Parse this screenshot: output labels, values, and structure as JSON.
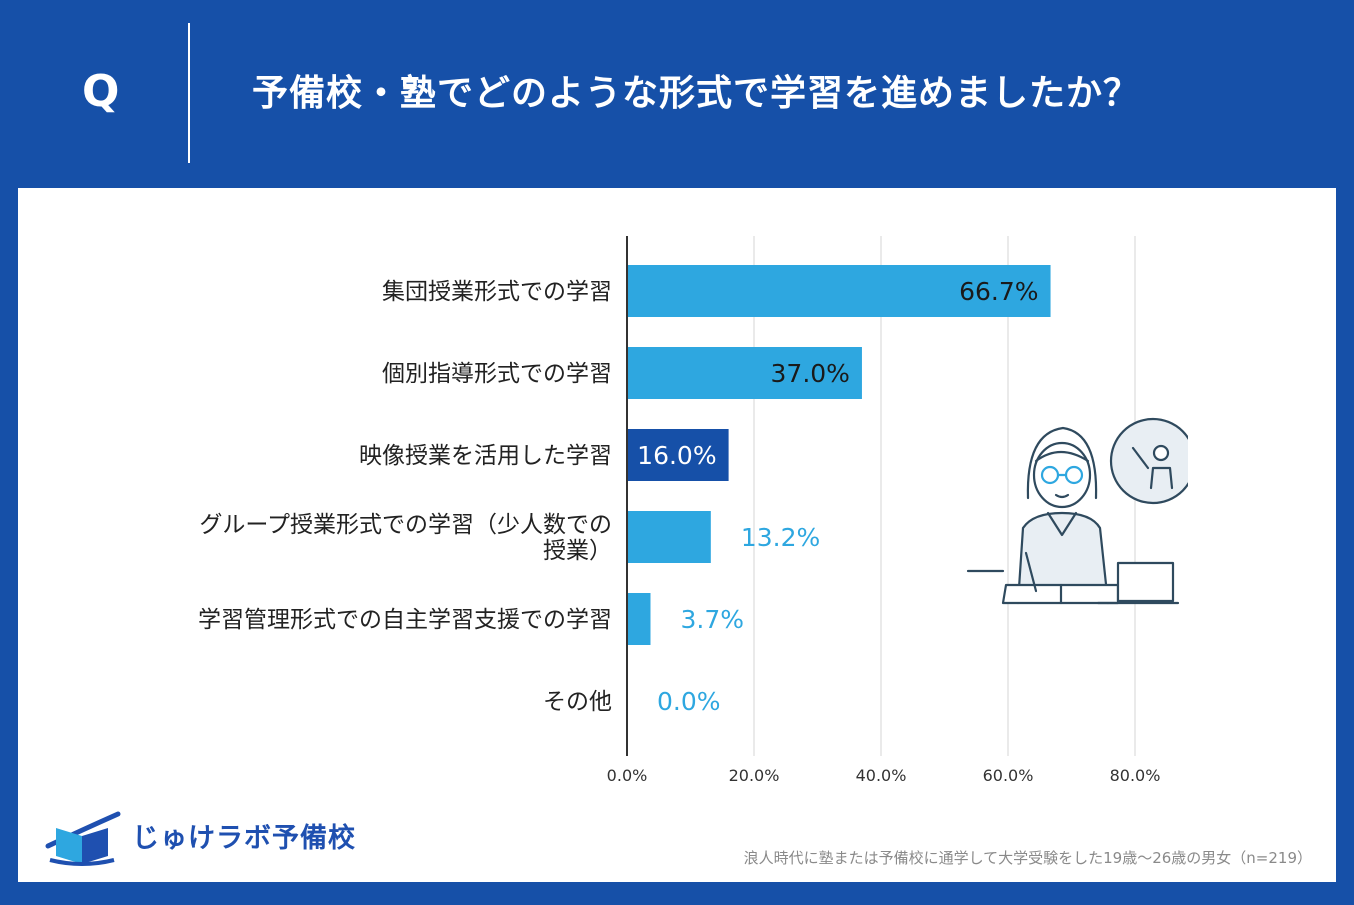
{
  "header": {
    "q_mark": "Q",
    "question": "予備校・塾でどのような形式で学習を進めましたか？"
  },
  "chart_data": {
    "type": "bar",
    "orientation": "horizontal",
    "categories": [
      "集団授業形式での学習",
      "個別指導形式での学習",
      "映像授業を活用した学習",
      "グループ授業形式での学習（少人数での授業）",
      "学習管理形式での自主学習支援での学習",
      "その他"
    ],
    "category_lines": [
      [
        "集団授業形式での学習"
      ],
      [
        "個別指導形式での学習"
      ],
      [
        "映像授業を活用した学習"
      ],
      [
        "グループ授業形式での学習（少人数での",
        "授業）"
      ],
      [
        "学習管理形式での自主学習支援での学習"
      ],
      [
        "その他"
      ]
    ],
    "values": [
      66.7,
      37.0,
      16.0,
      13.2,
      3.7,
      0.0
    ],
    "value_labels": [
      "66.7%",
      "37.0%",
      "16.0%",
      "13.2%",
      "3.7%",
      "0.0%"
    ],
    "highlight_index": 2,
    "xlim": [
      0,
      80
    ],
    "xticks": [
      "0.0%",
      "20.0%",
      "40.0%",
      "60.0%",
      "80.0%"
    ],
    "grid": true,
    "bar_color": "#2ea7e0",
    "highlight_color": "#1650a8"
  },
  "logo": {
    "text": "じゅけラボ予備校"
  },
  "footnote": "浪人時代に塾または予備校に通学して大学受験をした19歳～26歳の男女（n=219）",
  "colors": {
    "background": "#1650a8",
    "panel": "#ffffff",
    "bar": "#2ea7e0",
    "highlight": "#1650a8"
  }
}
